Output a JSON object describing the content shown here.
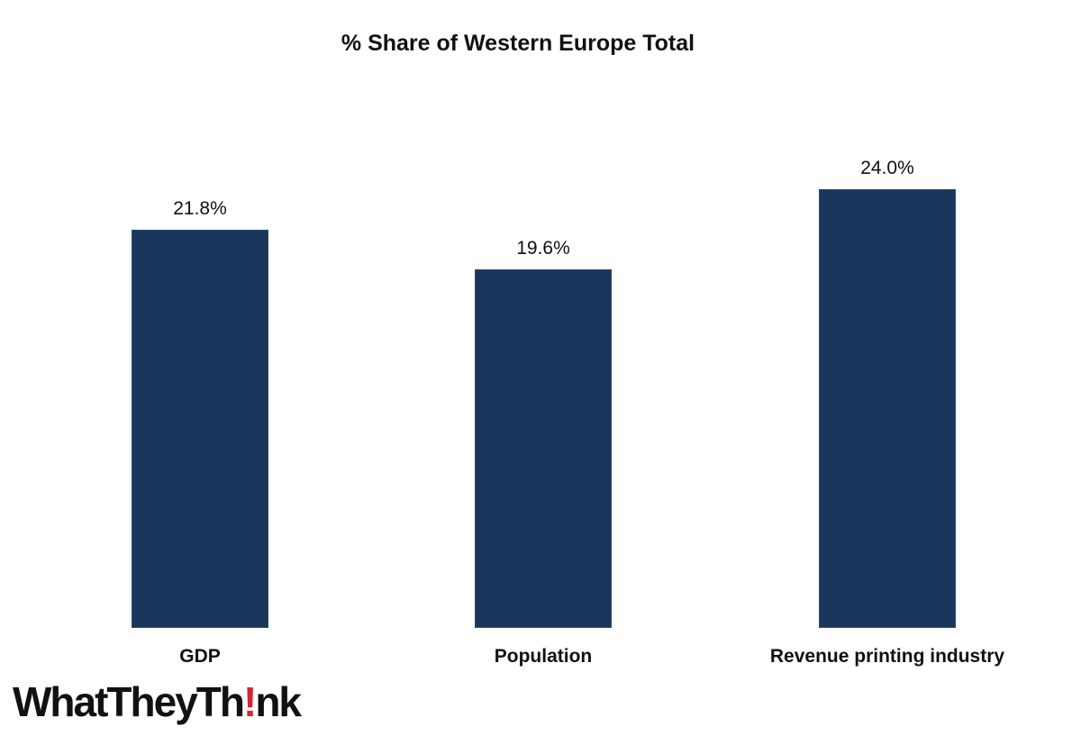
{
  "chart_data": {
    "type": "bar",
    "title": "% Share of Western Europe Total",
    "categories": [
      "GDP",
      "Population",
      "Revenue printing industry"
    ],
    "values": [
      21.8,
      19.6,
      24.0
    ],
    "value_labels": [
      "21.8%",
      "19.6%",
      "24.0%"
    ],
    "xlabel": "",
    "ylabel": "",
    "ylim": [
      0,
      24.0
    ],
    "grid": false,
    "legend": null,
    "bar_color": "#1b365d"
  },
  "branding": {
    "logo_part1": "WhatTheyTh",
    "logo_bang": "!",
    "logo_part2": "nk",
    "accent_color": "#d72631"
  }
}
